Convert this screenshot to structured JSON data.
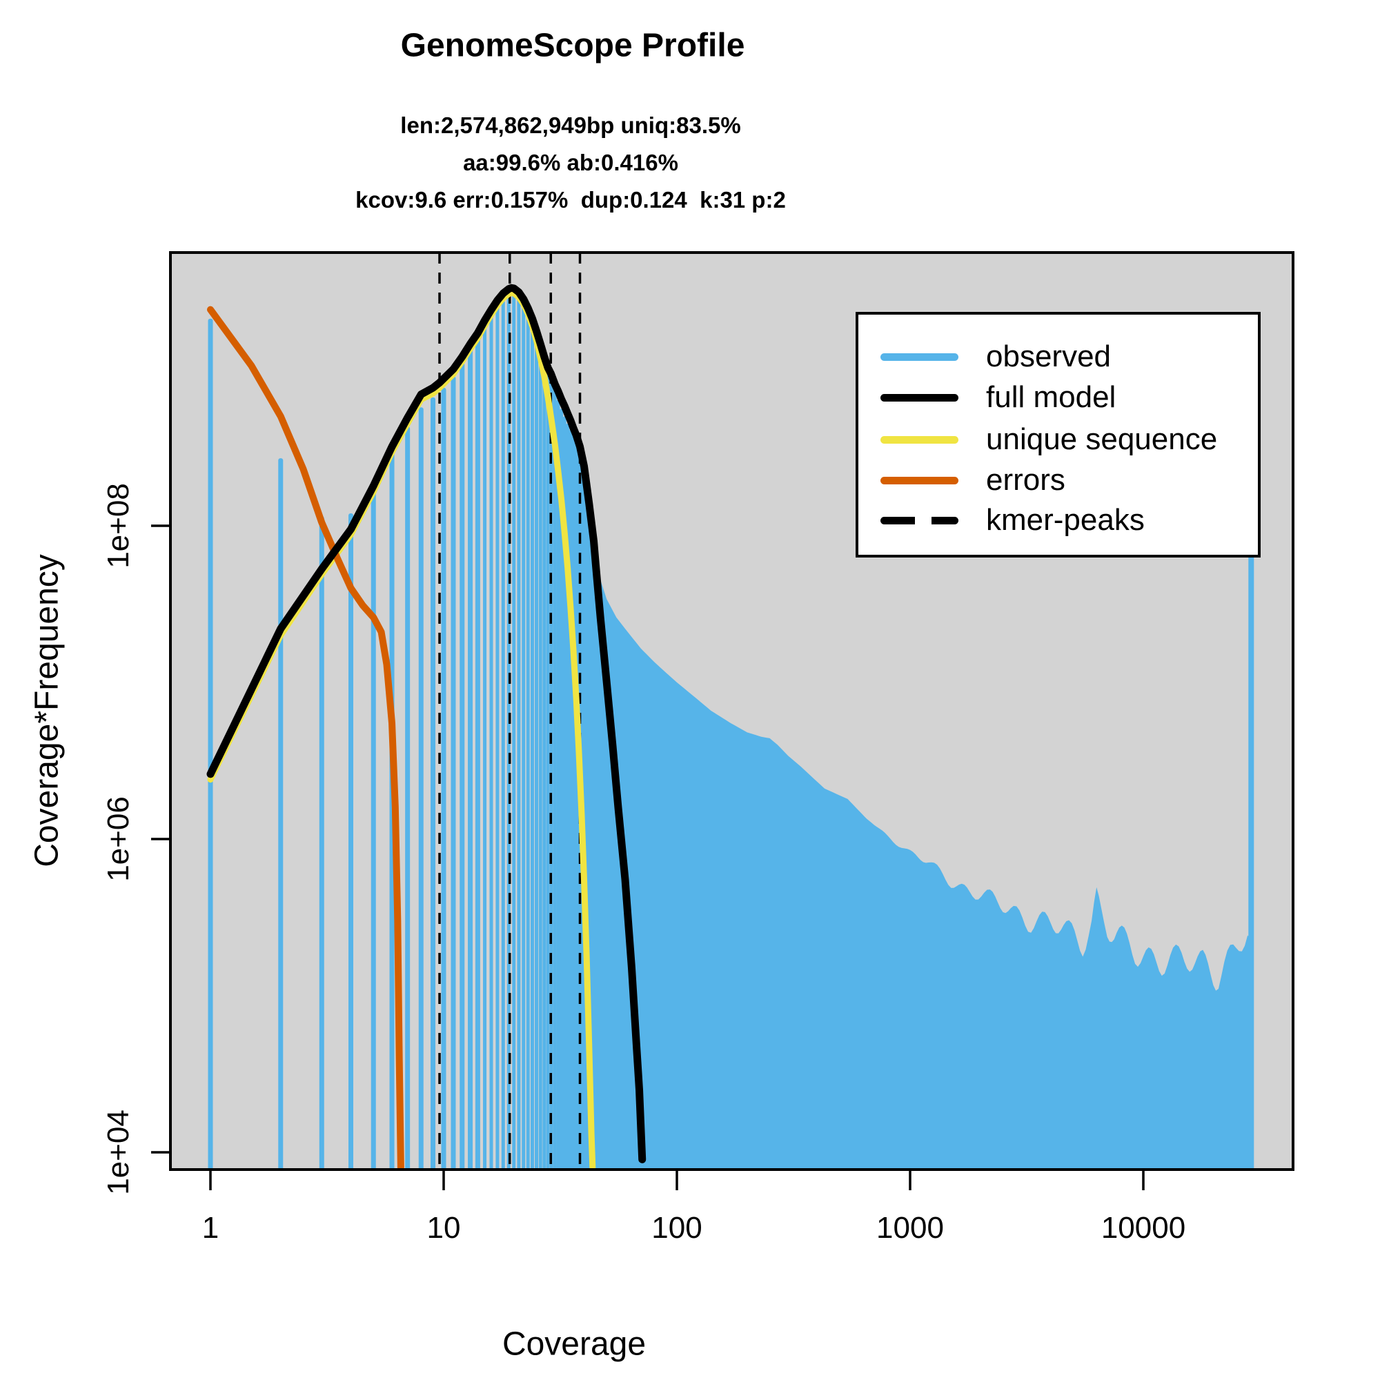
{
  "title": "GenomeScope Profile",
  "subtitle_lines": [
    "len:2,574,862,949bp uniq:83.5%",
    "aa:99.6% ab:0.416%",
    "kcov:9.6 err:0.157%  dup:0.124  k:31 p:2"
  ],
  "axes": {
    "x_label": "Coverage",
    "y_label": "Coverage*Frequency",
    "x_tick_labels": [
      "1",
      "10",
      "100",
      "1000",
      "10000"
    ],
    "y_tick_labels": [
      "1e+04",
      "1e+06",
      "1e+08"
    ]
  },
  "legend": {
    "items": [
      {
        "label": "observed",
        "color": "#56B4E9",
        "style": "solid"
      },
      {
        "label": "full model",
        "color": "#000000",
        "style": "solid"
      },
      {
        "label": "unique sequence",
        "color": "#F0E442",
        "style": "solid"
      },
      {
        "label": "errors",
        "color": "#D55E00",
        "style": "solid"
      },
      {
        "label": "kmer-peaks",
        "color": "#000000",
        "style": "dashed"
      }
    ]
  },
  "colors": {
    "panel_background": "#D3D3D3",
    "observed": "#56B4E9",
    "full_model": "#000000",
    "unique_sequence": "#F0E442",
    "errors": "#D55E00",
    "frame": "#000000"
  },
  "chart_data": {
    "type": "area",
    "description": "k-mer spectrum histogram (observed) with fitted model lines, log-log axes",
    "title": "GenomeScope Profile",
    "xlabel": "Coverage",
    "ylabel": "Coverage*Frequency",
    "x_scale": "log10",
    "y_scale": "log10",
    "x_ticks": [
      1,
      10,
      100,
      1000,
      10000
    ],
    "y_ticks": [
      10000,
      1000000,
      100000000
    ],
    "xlim": [
      0.67,
      43000
    ],
    "ylim": [
      7800,
      5500000000
    ],
    "grid": false,
    "legend_position": "top-right",
    "kmer_peaks": [
      9.6,
      19.2,
      28.8,
      38.4
    ],
    "observed_bars": [
      [
        1,
        2100000000.0
      ],
      [
        2,
        270000000.0
      ],
      [
        3,
        115000000.0
      ],
      [
        4,
        120000000.0
      ],
      [
        5,
        190000000.0
      ],
      [
        6,
        300000000.0
      ],
      [
        7,
        430000000.0
      ],
      [
        8,
        570000000.0
      ],
      [
        9,
        660000000.0
      ],
      [
        10,
        760000000.0
      ],
      [
        11,
        900000000.0
      ],
      [
        12,
        1100000000.0
      ],
      [
        13,
        1350000000.0
      ],
      [
        14,
        1600000000.0
      ],
      [
        15,
        1900000000.0
      ],
      [
        16,
        2200000000.0
      ],
      [
        17,
        2500000000.0
      ],
      [
        18,
        2750000000.0
      ],
      [
        19,
        2950000000.0
      ],
      [
        20,
        3000000000.0
      ],
      [
        21,
        2900000000.0
      ],
      [
        22,
        2650000000.0
      ],
      [
        23,
        2350000000.0
      ],
      [
        24,
        2000000000.0
      ],
      [
        25,
        1700000000.0
      ],
      [
        26,
        1450000000.0
      ],
      [
        27,
        1200000000.0
      ],
      [
        28,
        1000000000.0
      ],
      [
        29,
        860000000.0
      ],
      [
        30,
        740000000.0
      ],
      [
        31,
        640000000.0
      ],
      [
        32,
        560000000.0
      ],
      [
        33,
        500000000.0
      ],
      [
        34,
        450000000.0
      ],
      [
        35,
        410000000.0
      ],
      [
        36,
        380000000.0
      ],
      [
        37,
        360000000.0
      ],
      [
        38,
        350000000.0
      ],
      [
        39,
        330000000.0
      ],
      [
        40,
        280000000.0
      ],
      [
        41,
        210000000.0
      ],
      [
        42,
        150000000.0
      ],
      [
        43,
        105000000.0
      ],
      [
        44,
        75000000.0
      ],
      [
        45,
        55000000.0
      ]
    ],
    "observed_tail": [
      [
        45,
        55000000.0
      ],
      [
        50,
        34000000.0
      ],
      [
        55,
        26000000.0
      ],
      [
        60,
        22000000.0
      ],
      [
        70,
        16500000.0
      ],
      [
        80,
        13500000.0
      ],
      [
        90,
        11500000.0
      ],
      [
        100,
        10000000.0
      ],
      [
        120,
        8000000.0
      ],
      [
        140,
        6600000.0
      ],
      [
        170,
        5500000.0
      ],
      [
        200,
        4800000.0
      ],
      [
        230,
        4500000.0
      ],
      [
        250,
        4400000.0
      ],
      [
        270,
        4000000.0
      ],
      [
        300,
        3400000.0
      ],
      [
        340,
        2900000.0
      ],
      [
        390,
        2400000.0
      ],
      [
        430,
        2100000.0
      ],
      [
        540,
        1800000.0
      ],
      [
        650,
        1350000.0
      ],
      [
        800,
        1050000.0
      ],
      [
        1000,
        820000.0
      ],
      [
        1200,
        700000.0
      ],
      [
        1500,
        540000.0
      ],
      [
        1800,
        470000.0
      ],
      [
        2200,
        410000.0
      ],
      [
        2700,
        360000.0
      ],
      [
        3300,
        310000.0
      ],
      [
        4000,
        280000.0
      ],
      [
        4800,
        255000.0
      ],
      [
        5500,
        245000.0
      ],
      [
        6000,
        300000.0
      ],
      [
        6300,
        430000.0
      ],
      [
        6600,
        340000.0
      ],
      [
        7000,
        270000.0
      ],
      [
        7500,
        230000.0
      ],
      [
        8500,
        210000.0
      ],
      [
        10000,
        190000.0
      ],
      [
        12000,
        175000.0
      ],
      [
        15000,
        160000.0
      ],
      [
        18000,
        170000.0
      ],
      [
        21000,
        150000.0
      ],
      [
        25000,
        190000.0
      ],
      [
        28000,
        240000.0
      ],
      [
        29500,
        180000.0
      ]
    ],
    "observed_max_coverage_spike": {
      "coverage": 29000,
      "top_value": 110000000.0
    },
    "full_model": [
      [
        1,
        2600000.0
      ],
      [
        2,
        22000000.0
      ],
      [
        3,
        53000000.0
      ],
      [
        4,
        95000000.0
      ],
      [
        5,
        180000000.0
      ],
      [
        6,
        320000000.0
      ],
      [
        7,
        490000000.0
      ],
      [
        8,
        690000000.0
      ],
      [
        9,
        760000000.0
      ],
      [
        9.6,
        820000000.0
      ],
      [
        11,
        1000000000.0
      ],
      [
        12,
        1200000000.0
      ],
      [
        13,
        1450000000.0
      ],
      [
        14,
        1700000000.0
      ],
      [
        15,
        2050000000.0
      ],
      [
        16,
        2400000000.0
      ],
      [
        17,
        2750000000.0
      ],
      [
        18,
        3050000000.0
      ],
      [
        19,
        3250000000.0
      ],
      [
        19.5,
        3300000000.0
      ],
      [
        20,
        3280000000.0
      ],
      [
        21,
        3100000000.0
      ],
      [
        22,
        2800000000.0
      ],
      [
        23,
        2450000000.0
      ],
      [
        24,
        2100000000.0
      ],
      [
        25,
        1750000000.0
      ],
      [
        26,
        1450000000.0
      ],
      [
        27,
        1200000000.0
      ],
      [
        28,
        1020000000.0
      ],
      [
        28.8,
        940000000.0
      ],
      [
        30,
        800000000.0
      ],
      [
        31,
        720000000.0
      ],
      [
        32,
        640000000.0
      ],
      [
        33,
        580000000.0
      ],
      [
        34,
        520000000.0
      ],
      [
        35,
        470000000.0
      ],
      [
        36,
        420000000.0
      ],
      [
        37,
        380000000.0
      ],
      [
        38.4,
        320000000.0
      ],
      [
        40,
        240000000.0
      ],
      [
        42,
        140000000.0
      ],
      [
        44,
        80000000.0
      ],
      [
        45,
        54000000.0
      ],
      [
        47,
        26000000.0
      ],
      [
        50,
        10000000.0
      ],
      [
        53,
        4000000.0
      ],
      [
        56,
        1600000.0
      ],
      [
        60,
        550000.0
      ],
      [
        64,
        150000.0
      ],
      [
        67,
        50000.0
      ],
      [
        69,
        25000.0
      ],
      [
        71,
        9000.0
      ]
    ],
    "unique_sequence": [
      [
        1,
        2400000.0
      ],
      [
        2,
        20000000.0
      ],
      [
        3,
        49000000.0
      ],
      [
        4,
        88000000.0
      ],
      [
        5,
        165000000.0
      ],
      [
        6,
        295000000.0
      ],
      [
        7,
        450000000.0
      ],
      [
        8,
        640000000.0
      ],
      [
        9,
        700000000.0
      ],
      [
        9.6,
        760000000.0
      ],
      [
        11,
        930000000.0
      ],
      [
        12,
        1120000000.0
      ],
      [
        13,
        1350000000.0
      ],
      [
        14,
        1580000000.0
      ],
      [
        15,
        1900000000.0
      ],
      [
        16,
        2230000000.0
      ],
      [
        17,
        2560000000.0
      ],
      [
        18,
        2840000000.0
      ],
      [
        19,
        3020000000.0
      ],
      [
        19.5,
        3070000000.0
      ],
      [
        20,
        3050000000.0
      ],
      [
        21,
        2880000000.0
      ],
      [
        22,
        2600000000.0
      ],
      [
        23,
        2250000000.0
      ],
      [
        24,
        1880000000.0
      ],
      [
        25,
        1520000000.0
      ],
      [
        26,
        1180000000.0
      ],
      [
        27,
        900000000.0
      ],
      [
        28,
        660000000.0
      ],
      [
        29,
        470000000.0
      ],
      [
        30,
        330000000.0
      ],
      [
        31,
        220000000.0
      ],
      [
        32,
        145000000.0
      ],
      [
        33,
        90000000.0
      ],
      [
        34,
        54000000.0
      ],
      [
        35,
        30000000.0
      ],
      [
        36,
        16000000.0
      ],
      [
        37,
        8000000.0
      ],
      [
        38,
        3600000.0
      ],
      [
        39,
        1500000.0
      ],
      [
        40,
        550000.0
      ],
      [
        41,
        180000.0
      ],
      [
        42,
        50000.0
      ],
      [
        43,
        13000.0
      ],
      [
        43.5,
        8000.0
      ]
    ],
    "errors": [
      [
        1,
        2400000000.0
      ],
      [
        1.5,
        1050000000.0
      ],
      [
        2,
        500000000.0
      ],
      [
        2.5,
        230000000.0
      ],
      [
        3,
        105000000.0
      ],
      [
        3.5,
        62000000.0
      ],
      [
        4,
        40000000.0
      ],
      [
        4.5,
        31000000.0
      ],
      [
        5,
        26000000.0
      ],
      [
        5.4,
        21000000.0
      ],
      [
        5.7,
        13000000.0
      ],
      [
        6.0,
        5500000.0
      ],
      [
        6.2,
        1600000.0
      ],
      [
        6.35,
        300000.0
      ],
      [
        6.45,
        40000.0
      ],
      [
        6.55,
        8000.0
      ]
    ]
  }
}
